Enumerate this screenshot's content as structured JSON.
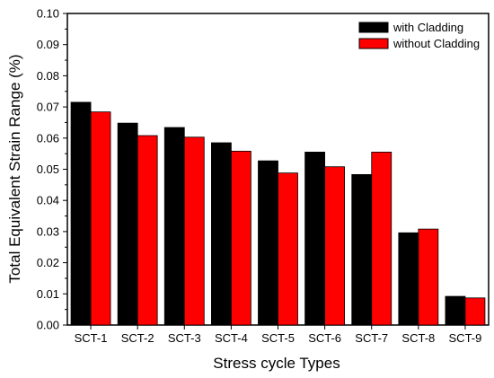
{
  "chart_data": {
    "type": "bar",
    "title": "",
    "xlabel": "Stress cycle Types",
    "ylabel": "Total Equivalent Strain Range (%)",
    "categories": [
      "SCT-1",
      "SCT-2",
      "SCT-3",
      "SCT-4",
      "SCT-5",
      "SCT-6",
      "SCT-7",
      "SCT-8",
      "SCT-9"
    ],
    "series": [
      {
        "name": "with Cladding",
        "color": "#000000",
        "values": [
          0.0715,
          0.0648,
          0.0634,
          0.0585,
          0.0527,
          0.0555,
          0.0483,
          0.0296,
          0.0092
        ]
      },
      {
        "name": "without Cladding",
        "color": "#ff0000",
        "values": [
          0.0684,
          0.0608,
          0.0603,
          0.0558,
          0.0488,
          0.0508,
          0.0555,
          0.0308,
          0.0087
        ]
      }
    ],
    "ylim": [
      0,
      0.1
    ],
    "yticks": [
      "0.00",
      "0.01",
      "0.02",
      "0.03",
      "0.04",
      "0.05",
      "0.06",
      "0.07",
      "0.08",
      "0.09",
      "0.10"
    ],
    "legend_position": "top-right",
    "grid": false
  }
}
